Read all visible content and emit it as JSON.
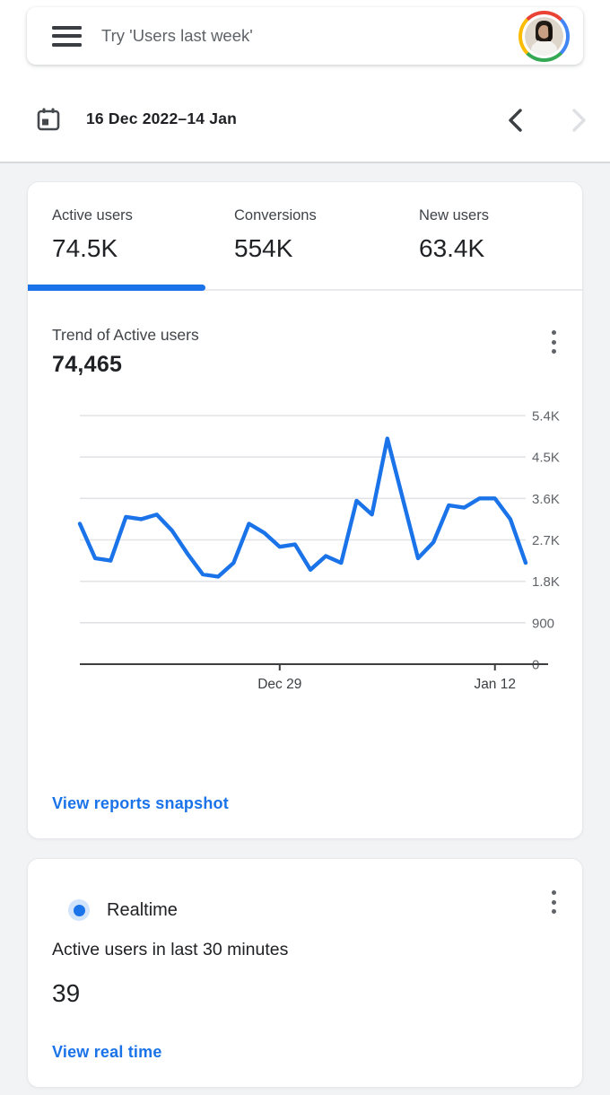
{
  "header": {
    "search": {
      "placeholder": "Try 'Users last week'"
    },
    "date_range": "16 Dec 2022–14 Jan"
  },
  "metrics": {
    "tabs": [
      {
        "label": "Active users",
        "value": "74.5K",
        "active": true
      },
      {
        "label": "Conversions",
        "value": "554K",
        "active": false
      },
      {
        "label": "New users",
        "value": "63.4K",
        "active": false
      }
    ]
  },
  "trend_card": {
    "title": "Trend of Active users",
    "total": "74,465",
    "link_label": "View reports snapshot"
  },
  "realtime_card": {
    "title": "Realtime",
    "subtitle": "Active users in last 30 minutes",
    "value": "39",
    "link_label": "View real time"
  },
  "chart_data": {
    "type": "line",
    "title": "Trend of Active users",
    "x_range": [
      "Dec 16",
      "Jan 14"
    ],
    "num_points": 30,
    "series": [
      {
        "name": "Active users",
        "values": [
          3050,
          2300,
          2250,
          3200,
          3150,
          3250,
          2900,
          2400,
          1950,
          1900,
          2200,
          3050,
          2850,
          2550,
          2600,
          2050,
          2350,
          2200,
          3550,
          3250,
          4900,
          3600,
          2300,
          2650,
          3450,
          3400,
          3600,
          3600,
          3150,
          2200
        ]
      }
    ],
    "ylim": [
      0,
      5400
    ],
    "y_tick_values": [
      5400,
      4500,
      3600,
      2700,
      1800,
      900,
      0
    ],
    "y_tick_labels": [
      "5.4K",
      "4.5K",
      "3.6K",
      "2.7K",
      "1.8K",
      "900",
      "0"
    ],
    "x_tick_indices": [
      13,
      27
    ],
    "x_tick_labels": [
      "Dec 29",
      "Jan 12"
    ],
    "grid": true,
    "legend": "none",
    "line_color": "#1a73e8"
  },
  "colors": {
    "accent_blue": "#1a73e8",
    "realtime_halo": "#d2e3fc",
    "grid_line": "#e1e3e6",
    "axis_line": "#3c3e40",
    "text_primary": "#202124",
    "text_secondary": "#5f6368",
    "ring_red": "#ea4335",
    "ring_blue": "#4285f4",
    "ring_green": "#34a853",
    "ring_yellow": "#fbbc05"
  }
}
